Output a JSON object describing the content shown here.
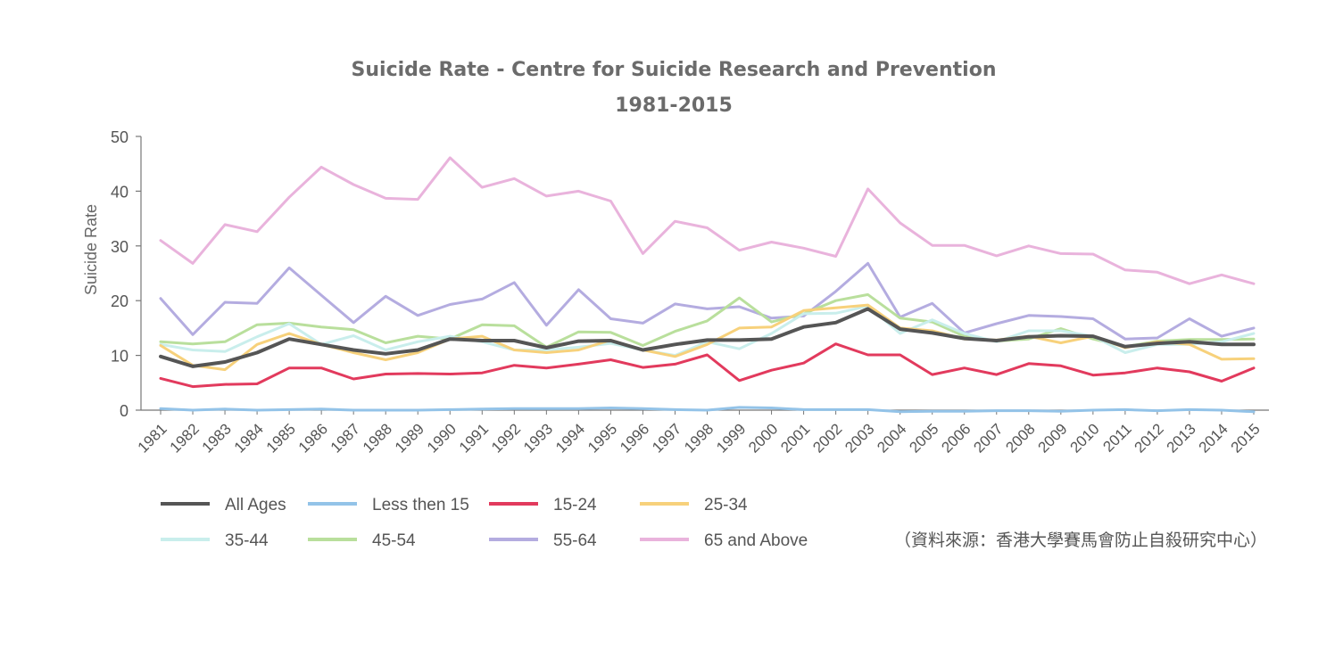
{
  "chart_data": {
    "type": "line",
    "title": "Suicide Rate - Centre for Suicide Research and Prevention",
    "subtitle": "1981-2015",
    "ylabel": "Suicide Rate",
    "xlabel": "",
    "ylim": [
      0,
      50
    ],
    "yticks": [
      0,
      10,
      20,
      30,
      40,
      50
    ],
    "grid": false,
    "legend_position": "bottom",
    "categories": [
      "1981",
      "1982",
      "1983",
      "1984",
      "1985",
      "1986",
      "1987",
      "1988",
      "1989",
      "1990",
      "1991",
      "1992",
      "1993",
      "1994",
      "1995",
      "1996",
      "1997",
      "1998",
      "1999",
      "2000",
      "2001",
      "2002",
      "2003",
      "2004",
      "2005",
      "2006",
      "2007",
      "2008",
      "2009",
      "2010",
      "2011",
      "2012",
      "2013",
      "2014",
      "2015"
    ],
    "series": [
      {
        "name": "65 and Above",
        "color": "#e9b3dc",
        "values": [
          31.0,
          26.8,
          33.9,
          32.6,
          38.9,
          44.4,
          41.2,
          38.7,
          38.5,
          46.1,
          40.7,
          42.3,
          39.1,
          40.0,
          38.2,
          28.6,
          34.5,
          33.3,
          29.2,
          30.7,
          29.6,
          28.1,
          40.4,
          34.2,
          30.1,
          30.1,
          28.2,
          30.0,
          28.6,
          28.5,
          25.6,
          25.2,
          23.1,
          24.7,
          23.1
        ]
      },
      {
        "name": "55-64",
        "color": "#b4ace0",
        "values": [
          20.4,
          13.8,
          19.7,
          19.5,
          26.0,
          21.0,
          16.0,
          20.8,
          17.3,
          19.3,
          20.3,
          23.3,
          15.5,
          22.0,
          16.7,
          15.9,
          19.4,
          18.5,
          18.9,
          16.8,
          17.2,
          21.7,
          26.8,
          17.0,
          19.5,
          14.1,
          15.8,
          17.3,
          17.1,
          16.7,
          13.0,
          13.2,
          16.7,
          13.5,
          15.0
        ]
      },
      {
        "name": "45-54",
        "color": "#b9df9c",
        "values": [
          12.5,
          12.1,
          12.5,
          15.6,
          15.9,
          15.2,
          14.7,
          12.3,
          13.5,
          13.0,
          15.6,
          15.4,
          11.5,
          14.3,
          14.2,
          11.8,
          14.4,
          16.3,
          20.5,
          16.1,
          17.6,
          20.0,
          21.1,
          16.8,
          16.1,
          13.5,
          12.6,
          13.0,
          14.9,
          13.0,
          11.6,
          12.6,
          12.9,
          12.9,
          13.0
        ]
      },
      {
        "name": "35-44",
        "color": "#c9eeec",
        "values": [
          12.0,
          11.0,
          10.7,
          13.4,
          15.8,
          12.0,
          13.6,
          11.0,
          12.5,
          13.5,
          12.5,
          11.0,
          11.0,
          11.5,
          12.2,
          11.0,
          10.0,
          12.5,
          11.2,
          14.0,
          17.6,
          17.7,
          19.0,
          14.0,
          16.5,
          14.0,
          12.5,
          14.5,
          14.5,
          13.5,
          10.5,
          12.0,
          12.0,
          12.5,
          14.0
        ]
      },
      {
        "name": "25-34",
        "color": "#f7d17b",
        "values": [
          11.8,
          8.2,
          7.4,
          12.0,
          14.0,
          12.0,
          10.5,
          9.2,
          10.5,
          13.0,
          13.5,
          11.0,
          10.5,
          11.0,
          12.8,
          11.0,
          9.8,
          12.0,
          15.0,
          15.2,
          18.2,
          18.7,
          19.2,
          15.0,
          14.5,
          13.0,
          12.8,
          13.5,
          12.3,
          13.5,
          11.4,
          12.5,
          12.0,
          9.3,
          9.4
        ]
      },
      {
        "name": "All Ages",
        "color": "#555555",
        "values": [
          9.8,
          8.0,
          8.8,
          10.5,
          13.0,
          12.0,
          11.0,
          10.3,
          11.0,
          13.0,
          12.7,
          12.7,
          11.4,
          12.6,
          12.7,
          11.0,
          12.0,
          12.8,
          12.8,
          13.0,
          15.2,
          16.0,
          18.5,
          14.8,
          14.1,
          13.1,
          12.7,
          13.4,
          13.6,
          13.5,
          11.6,
          12.2,
          12.5,
          12.0,
          12.0
        ]
      },
      {
        "name": "15-24",
        "color": "#e23a5d",
        "values": [
          5.8,
          4.3,
          4.7,
          4.8,
          7.7,
          7.7,
          5.7,
          6.6,
          6.7,
          6.6,
          6.8,
          8.2,
          7.7,
          8.4,
          9.2,
          7.8,
          8.4,
          10.1,
          5.4,
          7.3,
          8.6,
          12.1,
          10.1,
          10.1,
          6.5,
          7.7,
          6.5,
          8.5,
          8.1,
          6.4,
          6.8,
          7.7,
          7.0,
          5.3,
          7.7
        ]
      },
      {
        "name": "Less then 15",
        "color": "#93c3e8",
        "values": [
          0.3,
          0.0,
          0.2,
          0.0,
          0.1,
          0.2,
          0.0,
          0.0,
          0.0,
          0.1,
          0.2,
          0.3,
          0.3,
          0.3,
          0.4,
          0.3,
          0.1,
          0.0,
          0.5,
          0.4,
          0.1,
          0.1,
          0.1,
          -0.3,
          -0.2,
          -0.2,
          -0.1,
          -0.1,
          -0.2,
          0.0,
          0.1,
          -0.1,
          0.1,
          0.0,
          -0.3
        ]
      }
    ],
    "legend": [
      {
        "label": "All Ages",
        "color": "#555555"
      },
      {
        "label": "Less then 15",
        "color": "#93c3e8"
      },
      {
        "label": "15-24",
        "color": "#e23a5d"
      },
      {
        "label": "25-34",
        "color": "#f7d17b"
      },
      {
        "label": "35-44",
        "color": "#c9eeec"
      },
      {
        "label": "45-54",
        "color": "#b9df9c"
      },
      {
        "label": "55-64",
        "color": "#b4ace0"
      },
      {
        "label": "65 and Above",
        "color": "#e9b3dc"
      }
    ],
    "source_note": "（資料來源：香港大學賽馬會防止自殺研究中心）"
  }
}
